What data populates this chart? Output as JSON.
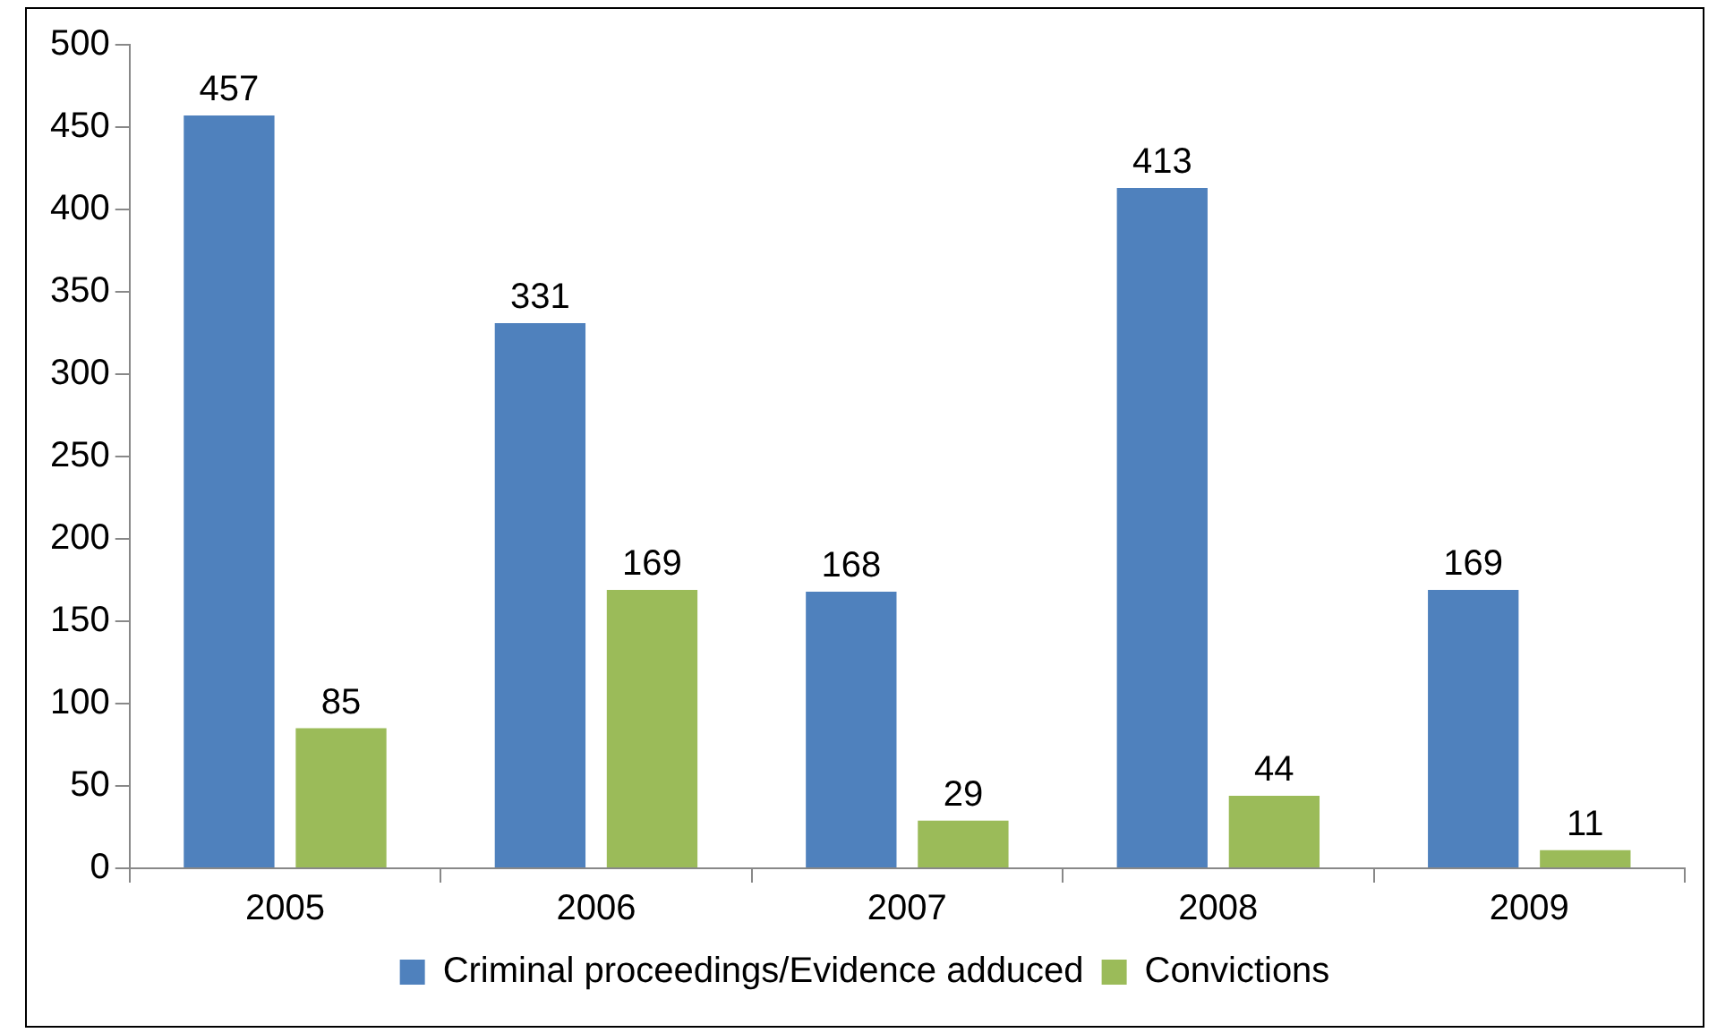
{
  "chart_data": {
    "type": "bar",
    "categories": [
      "2005",
      "2006",
      "2007",
      "2008",
      "2009"
    ],
    "series": [
      {
        "name": "Criminal proceedings/Evidence adduced",
        "color": "#4f81bd",
        "values": [
          457,
          331,
          168,
          413,
          169
        ]
      },
      {
        "name": "Convictions",
        "color": "#9bbb59",
        "values": [
          85,
          169,
          29,
          44,
          11
        ]
      }
    ],
    "ylim": [
      0,
      500
    ],
    "yticks": [
      0,
      50,
      100,
      150,
      200,
      250,
      300,
      350,
      400,
      450,
      500
    ],
    "grid": false,
    "legend": "bottom",
    "data_labels": true
  }
}
